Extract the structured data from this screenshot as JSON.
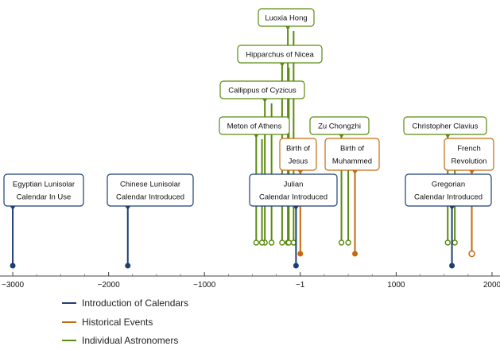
{
  "chart_data": {
    "type": "timeline",
    "x_axis": {
      "range": [
        -3100,
        2050
      ],
      "ticks": [
        -3000,
        -2000,
        -1000,
        -1,
        1000,
        2000
      ]
    },
    "series": [
      {
        "name": "Introduction of Calendars",
        "color": "#1f3f73"
      },
      {
        "name": "Historical Events",
        "color": "#c46a10"
      },
      {
        "name": "Individual Astronomers",
        "color": "#5a8a10"
      }
    ],
    "events": [
      {
        "series": 0,
        "kind": "point",
        "label": [
          "Egyptian Lunisolar",
          "Calendar In Use"
        ],
        "year": -3000
      },
      {
        "series": 0,
        "kind": "point",
        "label": [
          "Chinese Lunisolar",
          "Calendar Introduced"
        ],
        "year": -1800
      },
      {
        "series": 0,
        "kind": "point",
        "label": [
          "Julian",
          "Calendar Introduced"
        ],
        "year": -45
      },
      {
        "series": 0,
        "kind": "point",
        "label": [
          "Gregorian",
          "Calendar Introduced"
        ],
        "year": 1582
      },
      {
        "series": 1,
        "kind": "point",
        "label": [
          "Birth of",
          "Jesus"
        ],
        "year": 0
      },
      {
        "series": 1,
        "kind": "point",
        "label": [
          "Birth of",
          "Muhammed"
        ],
        "year": 570
      },
      {
        "series": 1,
        "kind": "open",
        "label": [
          "French",
          "Revolution"
        ],
        "year": 1789
      },
      {
        "series": 2,
        "kind": "span",
        "label": [
          "Luoxia Hong"
        ],
        "start": -130,
        "end": -70
      },
      {
        "series": 2,
        "kind": "span",
        "label": [
          "Hipparchus of Nicea"
        ],
        "start": -190,
        "end": -120
      },
      {
        "series": 2,
        "kind": "span",
        "label": [
          "Callippus of Cyzicus"
        ],
        "start": -370,
        "end": -300
      },
      {
        "series": 2,
        "kind": "span",
        "label": [
          "Meton of Athens"
        ],
        "start": -460,
        "end": -400
      },
      {
        "series": 2,
        "kind": "span",
        "label": [
          "Zu Chongzhi"
        ],
        "start": 429,
        "end": 500
      },
      {
        "series": 2,
        "kind": "span",
        "label": [
          "Christopher Clavius"
        ],
        "start": 1538,
        "end": 1612
      }
    ]
  }
}
